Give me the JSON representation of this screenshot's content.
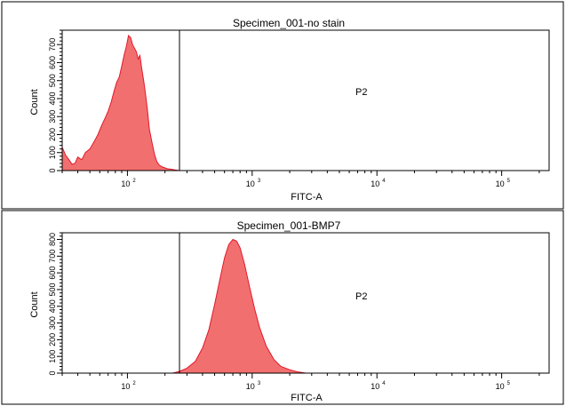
{
  "chart_data": [
    {
      "type": "area",
      "title": "Specimen_001-no stain",
      "xlabel": "FITC-A",
      "ylabel": "Count",
      "x_scale": "log",
      "xlim": [
        30,
        240000
      ],
      "ylim": [
        0,
        780
      ],
      "y_tick_labels": [
        "0",
        "100",
        "200",
        "300",
        "400",
        "500",
        "600",
        "700"
      ],
      "y_tick_values": [
        0,
        100,
        200,
        300,
        400,
        500,
        600,
        700
      ],
      "x_tick_labels": [
        {
          "base": "10",
          "exp": "2",
          "value": 100
        },
        {
          "base": "10",
          "exp": "3",
          "value": 1000
        },
        {
          "base": "10",
          "exp": "4",
          "value": 10000
        },
        {
          "base": "10",
          "exp": "5",
          "value": 100000
        }
      ],
      "gate": {
        "label": "P2",
        "x_start": 240
      },
      "fill_color": "#f26f6f",
      "stroke_color": "#e0192a",
      "x": [
        30,
        32,
        34,
        36,
        38,
        40,
        43,
        46,
        50,
        54,
        58,
        62,
        66,
        70,
        74,
        78,
        82,
        86,
        90,
        94,
        98,
        102,
        106,
        110,
        114,
        118,
        122,
        126,
        130,
        135,
        140,
        145,
        150,
        157,
        165,
        172,
        180,
        190,
        200,
        210,
        222,
        235,
        260
      ],
      "y": [
        130,
        85,
        60,
        35,
        40,
        75,
        60,
        100,
        120,
        160,
        200,
        250,
        290,
        330,
        380,
        440,
        490,
        520,
        580,
        640,
        690,
        750,
        740,
        700,
        680,
        660,
        620,
        640,
        570,
        500,
        420,
        330,
        230,
        160,
        90,
        50,
        30,
        20,
        15,
        10,
        8,
        5,
        0
      ]
    },
    {
      "type": "area",
      "title": "Specimen_001-BMP7",
      "xlabel": "FITC-A",
      "ylabel": "Count",
      "x_scale": "log",
      "xlim": [
        30,
        240000
      ],
      "ylim": [
        0,
        840
      ],
      "y_tick_labels": [
        "0",
        "100",
        "200",
        "300",
        "400",
        "500",
        "600",
        "700",
        "800"
      ],
      "y_tick_values": [
        0,
        100,
        200,
        300,
        400,
        500,
        600,
        700,
        800
      ],
      "x_tick_labels": [
        {
          "base": "10",
          "exp": "2",
          "value": 100
        },
        {
          "base": "10",
          "exp": "3",
          "value": 1000
        },
        {
          "base": "10",
          "exp": "4",
          "value": 10000
        },
        {
          "base": "10",
          "exp": "5",
          "value": 100000
        }
      ],
      "gate": {
        "label": "P2",
        "x_start": 240
      },
      "fill_color": "#f26f6f",
      "stroke_color": "#e0192a",
      "x": [
        230,
        260,
        300,
        350,
        400,
        450,
        500,
        550,
        600,
        650,
        700,
        750,
        800,
        870,
        950,
        1050,
        1150,
        1300,
        1500,
        1700,
        2000,
        2300,
        2700
      ],
      "y": [
        0,
        10,
        30,
        70,
        150,
        260,
        410,
        560,
        690,
        770,
        800,
        790,
        750,
        650,
        520,
        380,
        270,
        160,
        80,
        40,
        20,
        8,
        0
      ]
    }
  ]
}
